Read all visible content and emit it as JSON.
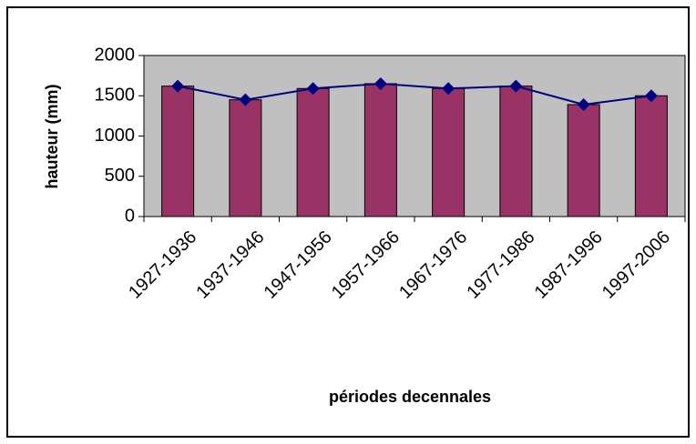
{
  "chart_data": {
    "type": "bar",
    "x_label": "périodes decennales",
    "y_label": "hauteur (mm)",
    "categories": [
      "1927-1936",
      "1937-1946",
      "1947-1956",
      "1957-1966",
      "1967-1976",
      "1977-1986",
      "1987-1996",
      "1997-2006"
    ],
    "series": [
      {
        "type": "bar",
        "color": "#993366",
        "values": [
          1620,
          1450,
          1590,
          1650,
          1590,
          1620,
          1390,
          1500
        ]
      },
      {
        "type": "line",
        "color": "#000080",
        "values": [
          1620,
          1450,
          1590,
          1650,
          1590,
          1620,
          1390,
          1500
        ]
      }
    ],
    "ylim": [
      0,
      2000
    ],
    "yticks": [
      0,
      500,
      1000,
      1500,
      2000
    ],
    "plot_background": "#c0c0c0"
  }
}
